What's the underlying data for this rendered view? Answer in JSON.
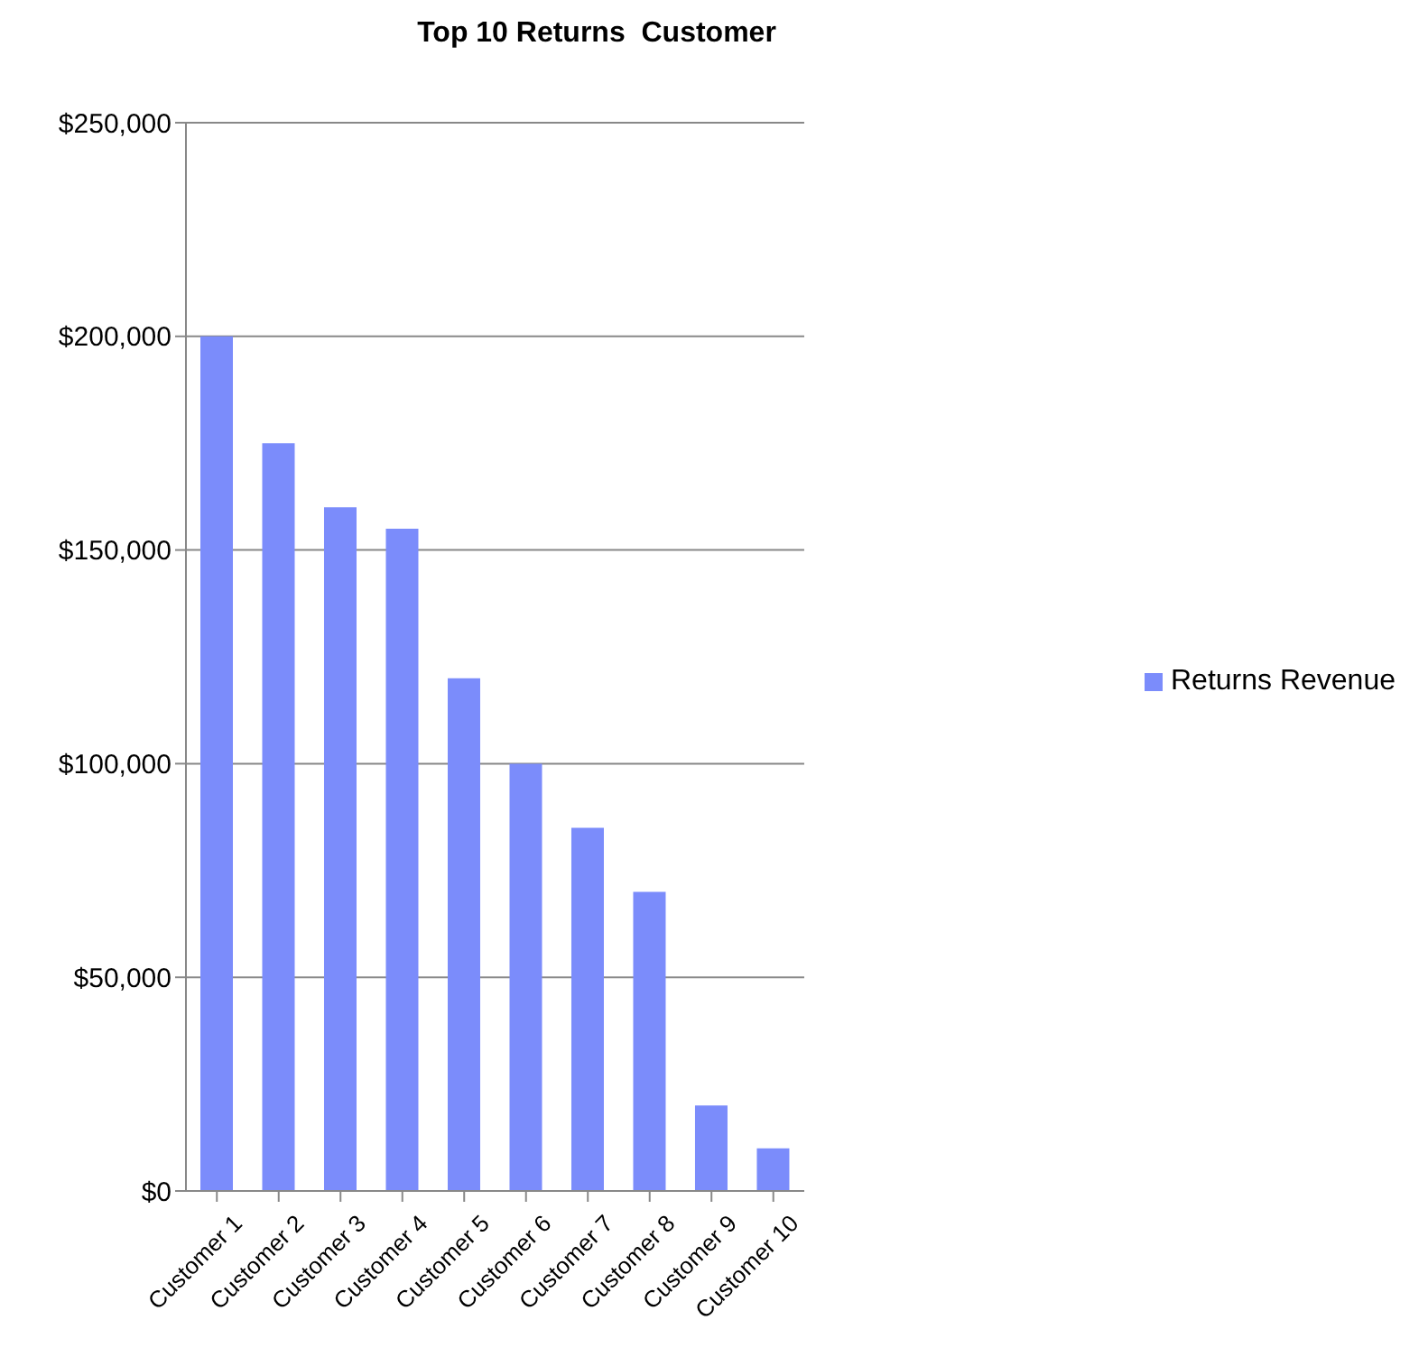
{
  "chart_data": {
    "type": "bar",
    "title": "Top 10 Returns  Customer",
    "categories": [
      "Customer 1",
      "Customer 2",
      "Customer 3",
      "Customer 4",
      "Customer 5",
      "Customer 6",
      "Customer 7",
      "Customer 8",
      "Customer 9",
      "Customer 10"
    ],
    "series": [
      {
        "name": "Returns Revenue",
        "color": "#7b8cfb",
        "values": [
          200000,
          175000,
          160000,
          155000,
          120000,
          100000,
          85000,
          70000,
          20000,
          10000
        ]
      }
    ],
    "ylim": [
      0,
      250000
    ],
    "yticks": [
      {
        "value": 0,
        "label": "$0"
      },
      {
        "value": 50000,
        "label": "$50,000"
      },
      {
        "value": 100000,
        "label": "$100,000"
      },
      {
        "value": 150000,
        "label": "$150,000"
      },
      {
        "value": 200000,
        "label": "$200,000"
      },
      {
        "value": 250000,
        "label": "$250,000"
      }
    ],
    "grid": "y",
    "legend": "right"
  }
}
